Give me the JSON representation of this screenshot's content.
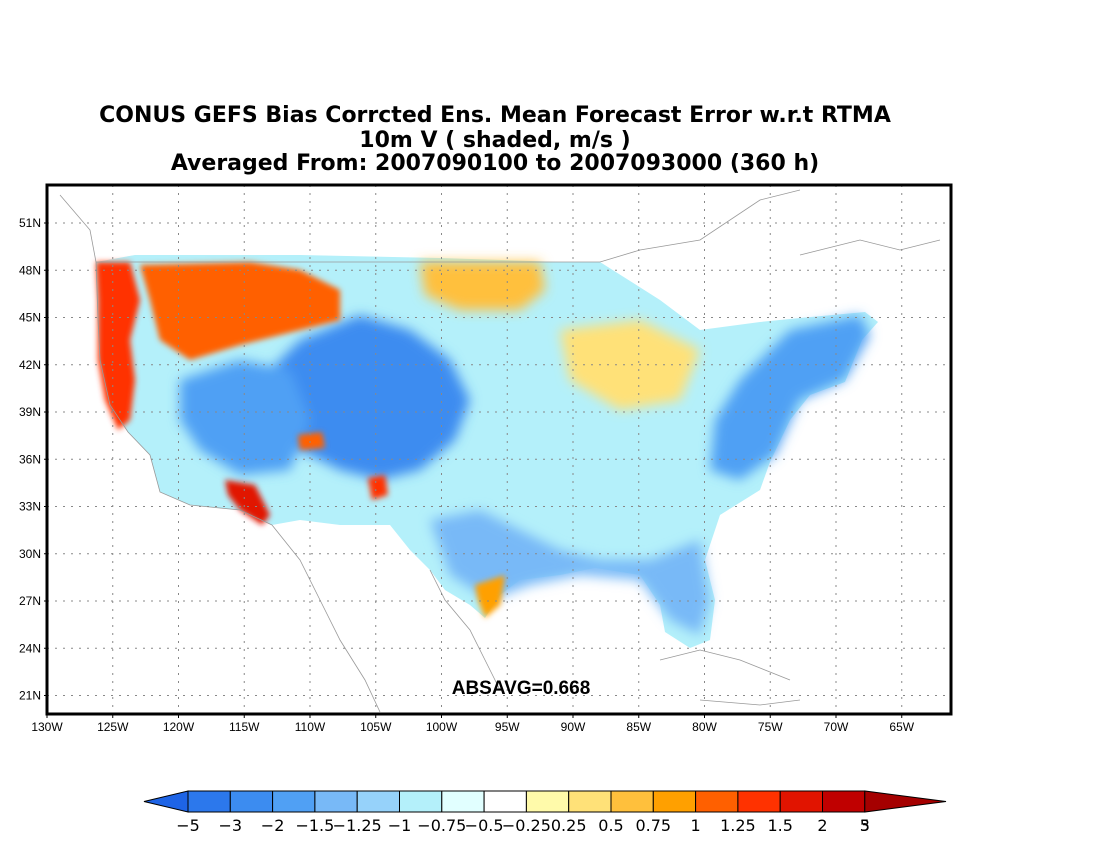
{
  "title": {
    "line1": "CONUS GEFS Bias Corrcted Ens. Mean Forecast Error w.r.t RTMA",
    "line2": "10m V ( shaded, m/s )",
    "line3": "Averaged From: 2007090100 to 2007093000 (360 h)"
  },
  "map": {
    "lat_labels": [
      "51N",
      "48N",
      "45N",
      "42N",
      "39N",
      "36N",
      "33N",
      "30N",
      "27N",
      "24N",
      "21N"
    ],
    "lat_values": [
      51,
      48,
      45,
      42,
      39,
      36,
      33,
      30,
      27,
      24,
      21
    ],
    "lon_labels": [
      "130W",
      "125W",
      "120W",
      "115W",
      "110W",
      "105W",
      "100W",
      "95W",
      "90W",
      "85W",
      "80W",
      "75W",
      "70W",
      "65W"
    ],
    "lon_values": [
      -130,
      -125,
      -120,
      -115,
      -110,
      -105,
      -100,
      -95,
      -90,
      -85,
      -80,
      -75,
      -70,
      -65
    ],
    "absavg": "ABSAVG=0.668"
  },
  "colorbar": {
    "colors": [
      "#1e64e6",
      "#2c78ec",
      "#3c8cf0",
      "#50a0f4",
      "#78b9f7",
      "#96d2fa",
      "#b4f0fa",
      "#e1ffff",
      "#ffffff",
      "#fffaaa",
      "#ffe178",
      "#ffc03c",
      "#ffa000",
      "#ff6000",
      "#ff3200",
      "#e11400",
      "#c00000",
      "#a50000"
    ],
    "labels": [
      "-5",
      "-3",
      "-2",
      "-1.5",
      "-1.25",
      "-1",
      "-0.75",
      "-0.5",
      "-0.25",
      "0.25",
      "0.5",
      "0.75",
      "1",
      "1.25",
      "1.5",
      "2",
      "3",
      "5"
    ]
  },
  "regions": [
    {
      "name": "west-coast-positive",
      "color": "#ff3200"
    },
    {
      "name": "southwest-positive",
      "color": "#e11400"
    },
    {
      "name": "plains-negative",
      "color": "#3c8cf0"
    },
    {
      "name": "northeast-negative",
      "color": "#50a0f4"
    },
    {
      "name": "northern-plains-positive",
      "color": "#ffc03c"
    },
    {
      "name": "gulf-coast-negative",
      "color": "#78b9f7"
    },
    {
      "name": "texas-coast-positive",
      "color": "#ffa000"
    }
  ]
}
